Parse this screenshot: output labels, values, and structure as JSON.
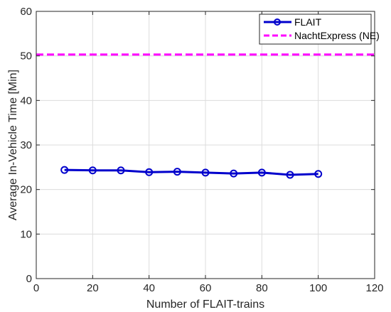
{
  "chart_data": {
    "type": "line",
    "title": "",
    "xlabel": "Number of FLAIT-trains",
    "ylabel": "Average In-Vehicle Time [Min]",
    "xlim": [
      0,
      120
    ],
    "ylim": [
      0,
      60
    ],
    "x_ticks": [
      0,
      20,
      40,
      60,
      80,
      100,
      120
    ],
    "y_ticks": [
      0,
      10,
      20,
      30,
      40,
      50,
      60
    ],
    "grid": true,
    "legend_position": "top-right",
    "series": [
      {
        "name": "FLAIT",
        "style": "solid-line-circle-markers",
        "color": "#0000cc",
        "x": [
          10,
          20,
          30,
          40,
          50,
          60,
          70,
          80,
          90,
          100
        ],
        "y": [
          24.4,
          24.3,
          24.3,
          23.9,
          24.0,
          23.8,
          23.6,
          23.8,
          23.3,
          23.5
        ]
      },
      {
        "name": "NachtExpress (NE)",
        "style": "dashed-horizontal-line",
        "color": "#ff00ff",
        "x": [
          0,
          120
        ],
        "y": [
          50.3,
          50.3
        ]
      }
    ]
  }
}
